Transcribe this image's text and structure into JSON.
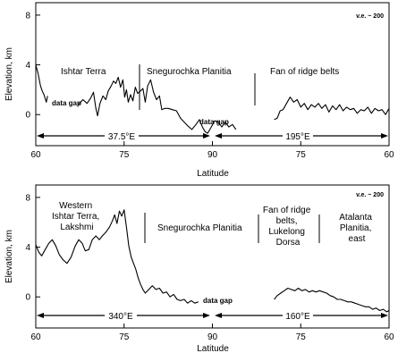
{
  "chart_data": [
    {
      "type": "line",
      "xlabel": "Latitude",
      "ylabel": "Elevation, km",
      "ve": "v.e. ~ 200",
      "xticks": [
        "60",
        "75",
        "90",
        "75",
        "60"
      ],
      "yticks": [
        "8",
        "4",
        "0"
      ],
      "ylim": [
        -2.5,
        9
      ],
      "gap": "data gap",
      "lon": [
        "37.5°E",
        "195°E"
      ],
      "regions": [
        "Ishtar Terra",
        "Snegurochka Planitia",
        "Fan of ridge belts"
      ],
      "series": [
        {
          "label": "data gap",
          "points": [
            [
              60,
              4.0
            ],
            [
              60.4,
              3.3
            ],
            [
              60.8,
              2.3
            ],
            [
              61.1,
              1.9
            ],
            [
              61.4,
              1.6
            ],
            [
              61.8,
              1.0
            ],
            [
              62,
              1.5
            ]
          ]
        },
        {
          "points": [
            [
              67.2,
              0.8
            ],
            [
              68,
              1.2
            ],
            [
              68.7,
              0.9
            ],
            [
              69.3,
              1.3
            ],
            [
              69.8,
              1.8
            ],
            [
              70.2,
              0.5
            ],
            [
              70.5,
              -0.1
            ],
            [
              70.9,
              0.9
            ],
            [
              71.4,
              1.5
            ],
            [
              71.9,
              1.2
            ],
            [
              72.3,
              1.9
            ],
            [
              72.8,
              2.3
            ],
            [
              73.2,
              2.7
            ],
            [
              73.6,
              2.5
            ],
            [
              74,
              3.0
            ],
            [
              74.4,
              2.2
            ],
            [
              74.8,
              2.8
            ],
            [
              75.1,
              1.4
            ],
            [
              75.4,
              2.0
            ],
            [
              75.7,
              1.0
            ],
            [
              76.1,
              1.6
            ],
            [
              76.5,
              1.1
            ],
            [
              76.9,
              2.2
            ],
            [
              77.3,
              1.7
            ],
            [
              77.8,
              1.9
            ],
            [
              78.2,
              2.1
            ],
            [
              78.6,
              1.0
            ],
            [
              79,
              2.3
            ],
            [
              79.5,
              2.8
            ],
            [
              80,
              1.8
            ],
            [
              80.5,
              1.2
            ],
            [
              81,
              1.5
            ],
            [
              81.4,
              0.4
            ],
            [
              81.9,
              0.5
            ],
            [
              82.5,
              0.5
            ],
            [
              83.2,
              0.4
            ],
            [
              83.9,
              0.3
            ],
            [
              84.6,
              -0.3
            ],
            [
              85.2,
              -0.6
            ],
            [
              85.8,
              -0.9
            ],
            [
              86.5,
              -1.2
            ],
            [
              87.2,
              -0.8
            ],
            [
              87.8,
              -0.4
            ],
            [
              88.3,
              -1.0
            ],
            [
              88.8,
              -1.4
            ],
            [
              89.2,
              -1.5
            ],
            [
              89.8,
              -1.0
            ],
            [
              90.4,
              -0.5
            ],
            [
              91,
              -0.6
            ],
            [
              91.6,
              -1.0
            ],
            [
              92.2,
              -0.6
            ],
            [
              92.8,
              -1.0
            ],
            [
              93.4,
              -0.8
            ],
            [
              94,
              -1.2
            ]
          ]
        },
        {
          "points": [
            [
              100.5,
              -0.4
            ],
            [
              101,
              -0.3
            ],
            [
              101.5,
              0.3
            ],
            [
              102,
              0.4
            ],
            [
              102.6,
              0.9
            ],
            [
              103.2,
              1.4
            ],
            [
              103.8,
              1.0
            ],
            [
              104.4,
              1.2
            ],
            [
              105,
              0.6
            ],
            [
              105.6,
              0.9
            ],
            [
              106.2,
              0.4
            ],
            [
              106.8,
              0.8
            ],
            [
              107.4,
              0.6
            ],
            [
              108,
              0.9
            ],
            [
              108.6,
              0.5
            ],
            [
              109.2,
              0.8
            ],
            [
              109.8,
              0.2
            ],
            [
              110.4,
              0.7
            ],
            [
              111,
              0.4
            ],
            [
              111.6,
              0.8
            ],
            [
              112.2,
              0.3
            ],
            [
              112.8,
              0.6
            ],
            [
              113.4,
              0.4
            ],
            [
              114,
              0.5
            ],
            [
              114.6,
              0.1
            ],
            [
              115.2,
              0.4
            ],
            [
              115.8,
              0.3
            ],
            [
              116.4,
              0.6
            ],
            [
              117,
              0.1
            ],
            [
              117.6,
              0.5
            ],
            [
              118.2,
              0.3
            ],
            [
              118.8,
              0.4
            ],
            [
              119.4,
              0.0
            ],
            [
              120,
              0.5
            ]
          ]
        }
      ]
    },
    {
      "type": "line",
      "xlabel": "Latitude",
      "ylabel": "Elevation, km",
      "ve": "v.e. ~ 200",
      "xticks": [
        "60",
        "75",
        "90",
        "75",
        "60"
      ],
      "yticks": [
        "8",
        "4",
        "0"
      ],
      "ylim": [
        -2.5,
        9
      ],
      "gap": "data gap",
      "lon": [
        "340°E",
        "160°E"
      ],
      "regions_a": [
        "Western",
        "Ishtar Terra,",
        "Lakshmi"
      ],
      "regions_b": [
        "Snegurochka Planitia"
      ],
      "regions_c": [
        "Fan of ridge",
        "belts,",
        "Lukelong",
        "Dorsa"
      ],
      "regions_d": [
        "Atalanta",
        "Planitia,",
        "east"
      ],
      "series": [
        {
          "points": [
            [
              60,
              4.2
            ],
            [
              60.5,
              3.6
            ],
            [
              61,
              3.3
            ],
            [
              61.6,
              3.8
            ],
            [
              62.2,
              4.3
            ],
            [
              62.8,
              4.6
            ],
            [
              63.4,
              4.1
            ],
            [
              64,
              3.4
            ],
            [
              64.6,
              3.0
            ],
            [
              65.3,
              2.7
            ],
            [
              66,
              3.2
            ],
            [
              66.7,
              4.1
            ],
            [
              67.3,
              4.6
            ],
            [
              67.9,
              4.3
            ],
            [
              68.4,
              3.7
            ],
            [
              69,
              3.8
            ],
            [
              69.6,
              4.6
            ],
            [
              70.2,
              4.9
            ],
            [
              70.8,
              4.6
            ],
            [
              71.3,
              4.9
            ],
            [
              71.9,
              5.2
            ],
            [
              72.5,
              5.6
            ],
            [
              73,
              6.1
            ],
            [
              73.4,
              6.6
            ],
            [
              73.8,
              5.9
            ],
            [
              74.2,
              6.9
            ],
            [
              74.6,
              6.5
            ],
            [
              75,
              7.0
            ],
            [
              75.4,
              5.6
            ],
            [
              75.8,
              4.1
            ],
            [
              76.2,
              3.2
            ],
            [
              76.6,
              2.7
            ],
            [
              77,
              2.2
            ],
            [
              77.4,
              1.5
            ],
            [
              77.8,
              1.0
            ],
            [
              78.2,
              0.6
            ],
            [
              78.6,
              0.3
            ],
            [
              79.2,
              0.6
            ],
            [
              79.8,
              0.9
            ],
            [
              80.4,
              0.6
            ],
            [
              81,
              0.7
            ],
            [
              81.6,
              0.3
            ],
            [
              82.2,
              0.4
            ],
            [
              82.8,
              0.0
            ],
            [
              83.4,
              0.2
            ],
            [
              84,
              -0.2
            ],
            [
              84.6,
              -0.3
            ],
            [
              85.2,
              -0.2
            ],
            [
              85.8,
              -0.5
            ],
            [
              86.4,
              -0.3
            ],
            [
              87,
              -0.5
            ],
            [
              87.6,
              -0.4
            ]
          ]
        },
        {
          "points": [
            [
              100.5,
              -0.2
            ],
            [
              101,
              0.1
            ],
            [
              101.6,
              0.3
            ],
            [
              102.2,
              0.5
            ],
            [
              102.8,
              0.7
            ],
            [
              103.4,
              0.6
            ],
            [
              104,
              0.5
            ],
            [
              104.6,
              0.7
            ],
            [
              105.2,
              0.5
            ],
            [
              105.8,
              0.6
            ],
            [
              106.4,
              0.4
            ],
            [
              107,
              0.5
            ],
            [
              107.6,
              0.4
            ],
            [
              108.2,
              0.5
            ],
            [
              108.8,
              0.4
            ],
            [
              109.4,
              0.3
            ],
            [
              110,
              0.1
            ],
            [
              110.6,
              0.0
            ],
            [
              111.2,
              -0.2
            ],
            [
              111.8,
              -0.2
            ],
            [
              112.4,
              -0.3
            ],
            [
              113,
              -0.4
            ],
            [
              113.6,
              -0.4
            ],
            [
              114.2,
              -0.5
            ],
            [
              114.8,
              -0.6
            ],
            [
              115.4,
              -0.7
            ],
            [
              116,
              -0.8
            ],
            [
              116.6,
              -0.8
            ],
            [
              117.2,
              -1.0
            ],
            [
              117.8,
              -0.9
            ],
            [
              118.4,
              -1.1
            ],
            [
              119,
              -1.0
            ],
            [
              119.6,
              -1.2
            ],
            [
              120,
              -1.1
            ]
          ]
        }
      ]
    }
  ]
}
